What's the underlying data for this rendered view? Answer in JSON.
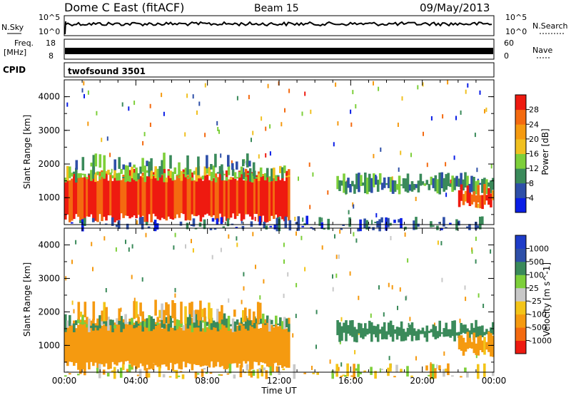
{
  "header": {
    "station": "Dome C East (fitACF)",
    "beam": "Beam 15",
    "date": "09/May/2013"
  },
  "noise_panel": {
    "left_label": "N.Sky",
    "right_label": "N.Search",
    "top_tick": "10^5",
    "bottom_tick": "10^0"
  },
  "freq_panel": {
    "left_label_1": "Freq.",
    "left_label_2": "[MHz]",
    "right_label": "Nave",
    "left_ticks": [
      "18",
      "8"
    ],
    "right_ticks": [
      "60",
      "0"
    ]
  },
  "cpid": {
    "label": "CPID",
    "value": "twofsound 3501"
  },
  "colors": {
    "power_scale": [
      "#0a1ee6",
      "#2e4fa8",
      "#3a8a5a",
      "#7dcf3a",
      "#f0c020",
      "#f59a10",
      "#f46a10",
      "#ee1a10"
    ],
    "velocity_scale": [
      "#ee1a10",
      "#f46a10",
      "#f59a10",
      "#f3c418",
      "#c8c8c8",
      "#7dcf3a",
      "#3a8a5a",
      "#2e4fa8",
      "#1e3cc8"
    ]
  },
  "chart_data": [
    {
      "type": "heatmap",
      "name": "power",
      "xlabel": "Time UT",
      "ylabel": "Slant Range [km]",
      "xlim": [
        0,
        24
      ],
      "ylim": [
        200,
        4500
      ],
      "x_ticks": [
        "00:00",
        "04:00",
        "08:00",
        "12:00",
        "16:00",
        "20:00",
        "00:00"
      ],
      "y_ticks": [
        "1000",
        "2000",
        "3000",
        "4000"
      ],
      "colorbar_label": "Power [dB]",
      "colorbar_ticks": [
        "4",
        "8",
        "12",
        "16",
        "20",
        "24",
        "28"
      ],
      "colorbar_range": [
        0,
        32
      ],
      "regions": [
        {
          "t0": 0.0,
          "t1": 12.6,
          "r0": 450,
          "r1": 1750,
          "value": 29
        },
        {
          "t0": 0.0,
          "t1": 12.6,
          "r0": 1650,
          "r1": 1850,
          "value": 14
        },
        {
          "t0": 0.5,
          "t1": 11.0,
          "r0": 1850,
          "r1": 2250,
          "value": 10
        },
        {
          "t0": 15.2,
          "t1": 24.0,
          "r0": 1300,
          "r1": 1650,
          "value": 10
        },
        {
          "t0": 22.0,
          "t1": 24.0,
          "r0": 850,
          "r1": 1300,
          "value": 26
        },
        {
          "t0": 0.0,
          "t1": 24.0,
          "r0": 200,
          "r1": 350,
          "value": 6
        }
      ]
    },
    {
      "type": "heatmap",
      "name": "velocity",
      "xlabel": "Time UT",
      "ylabel": "Slant Range [km]",
      "xlim": [
        0,
        24
      ],
      "ylim": [
        200,
        4500
      ],
      "x_ticks": [
        "00:00",
        "04:00",
        "08:00",
        "12:00",
        "16:00",
        "20:00",
        "00:00"
      ],
      "y_ticks": [
        "1000",
        "2000",
        "3000",
        "4000"
      ],
      "colorbar_label": "Velocity [m s^-1]",
      "colorbar_ticks": [
        "1000",
        "500",
        "100",
        "25",
        "-25",
        "-100",
        "-500",
        "-1000"
      ],
      "regions": [
        {
          "t0": 0.0,
          "t1": 12.6,
          "r0": 450,
          "r1": 1750,
          "value": -300
        },
        {
          "t0": 0.0,
          "t1": 12.6,
          "r0": 1600,
          "r1": 1850,
          "value": 150
        },
        {
          "t0": 0.5,
          "t1": 11.0,
          "r0": 1850,
          "r1": 2250,
          "value": -150
        },
        {
          "t0": 15.2,
          "t1": 24.0,
          "r0": 1300,
          "r1": 1650,
          "value": 300
        },
        {
          "t0": 22.0,
          "t1": 24.0,
          "r0": 850,
          "r1": 1300,
          "value": -200
        },
        {
          "t0": 0.0,
          "t1": 24.0,
          "r0": 200,
          "r1": 350,
          "value": -50
        }
      ]
    }
  ]
}
